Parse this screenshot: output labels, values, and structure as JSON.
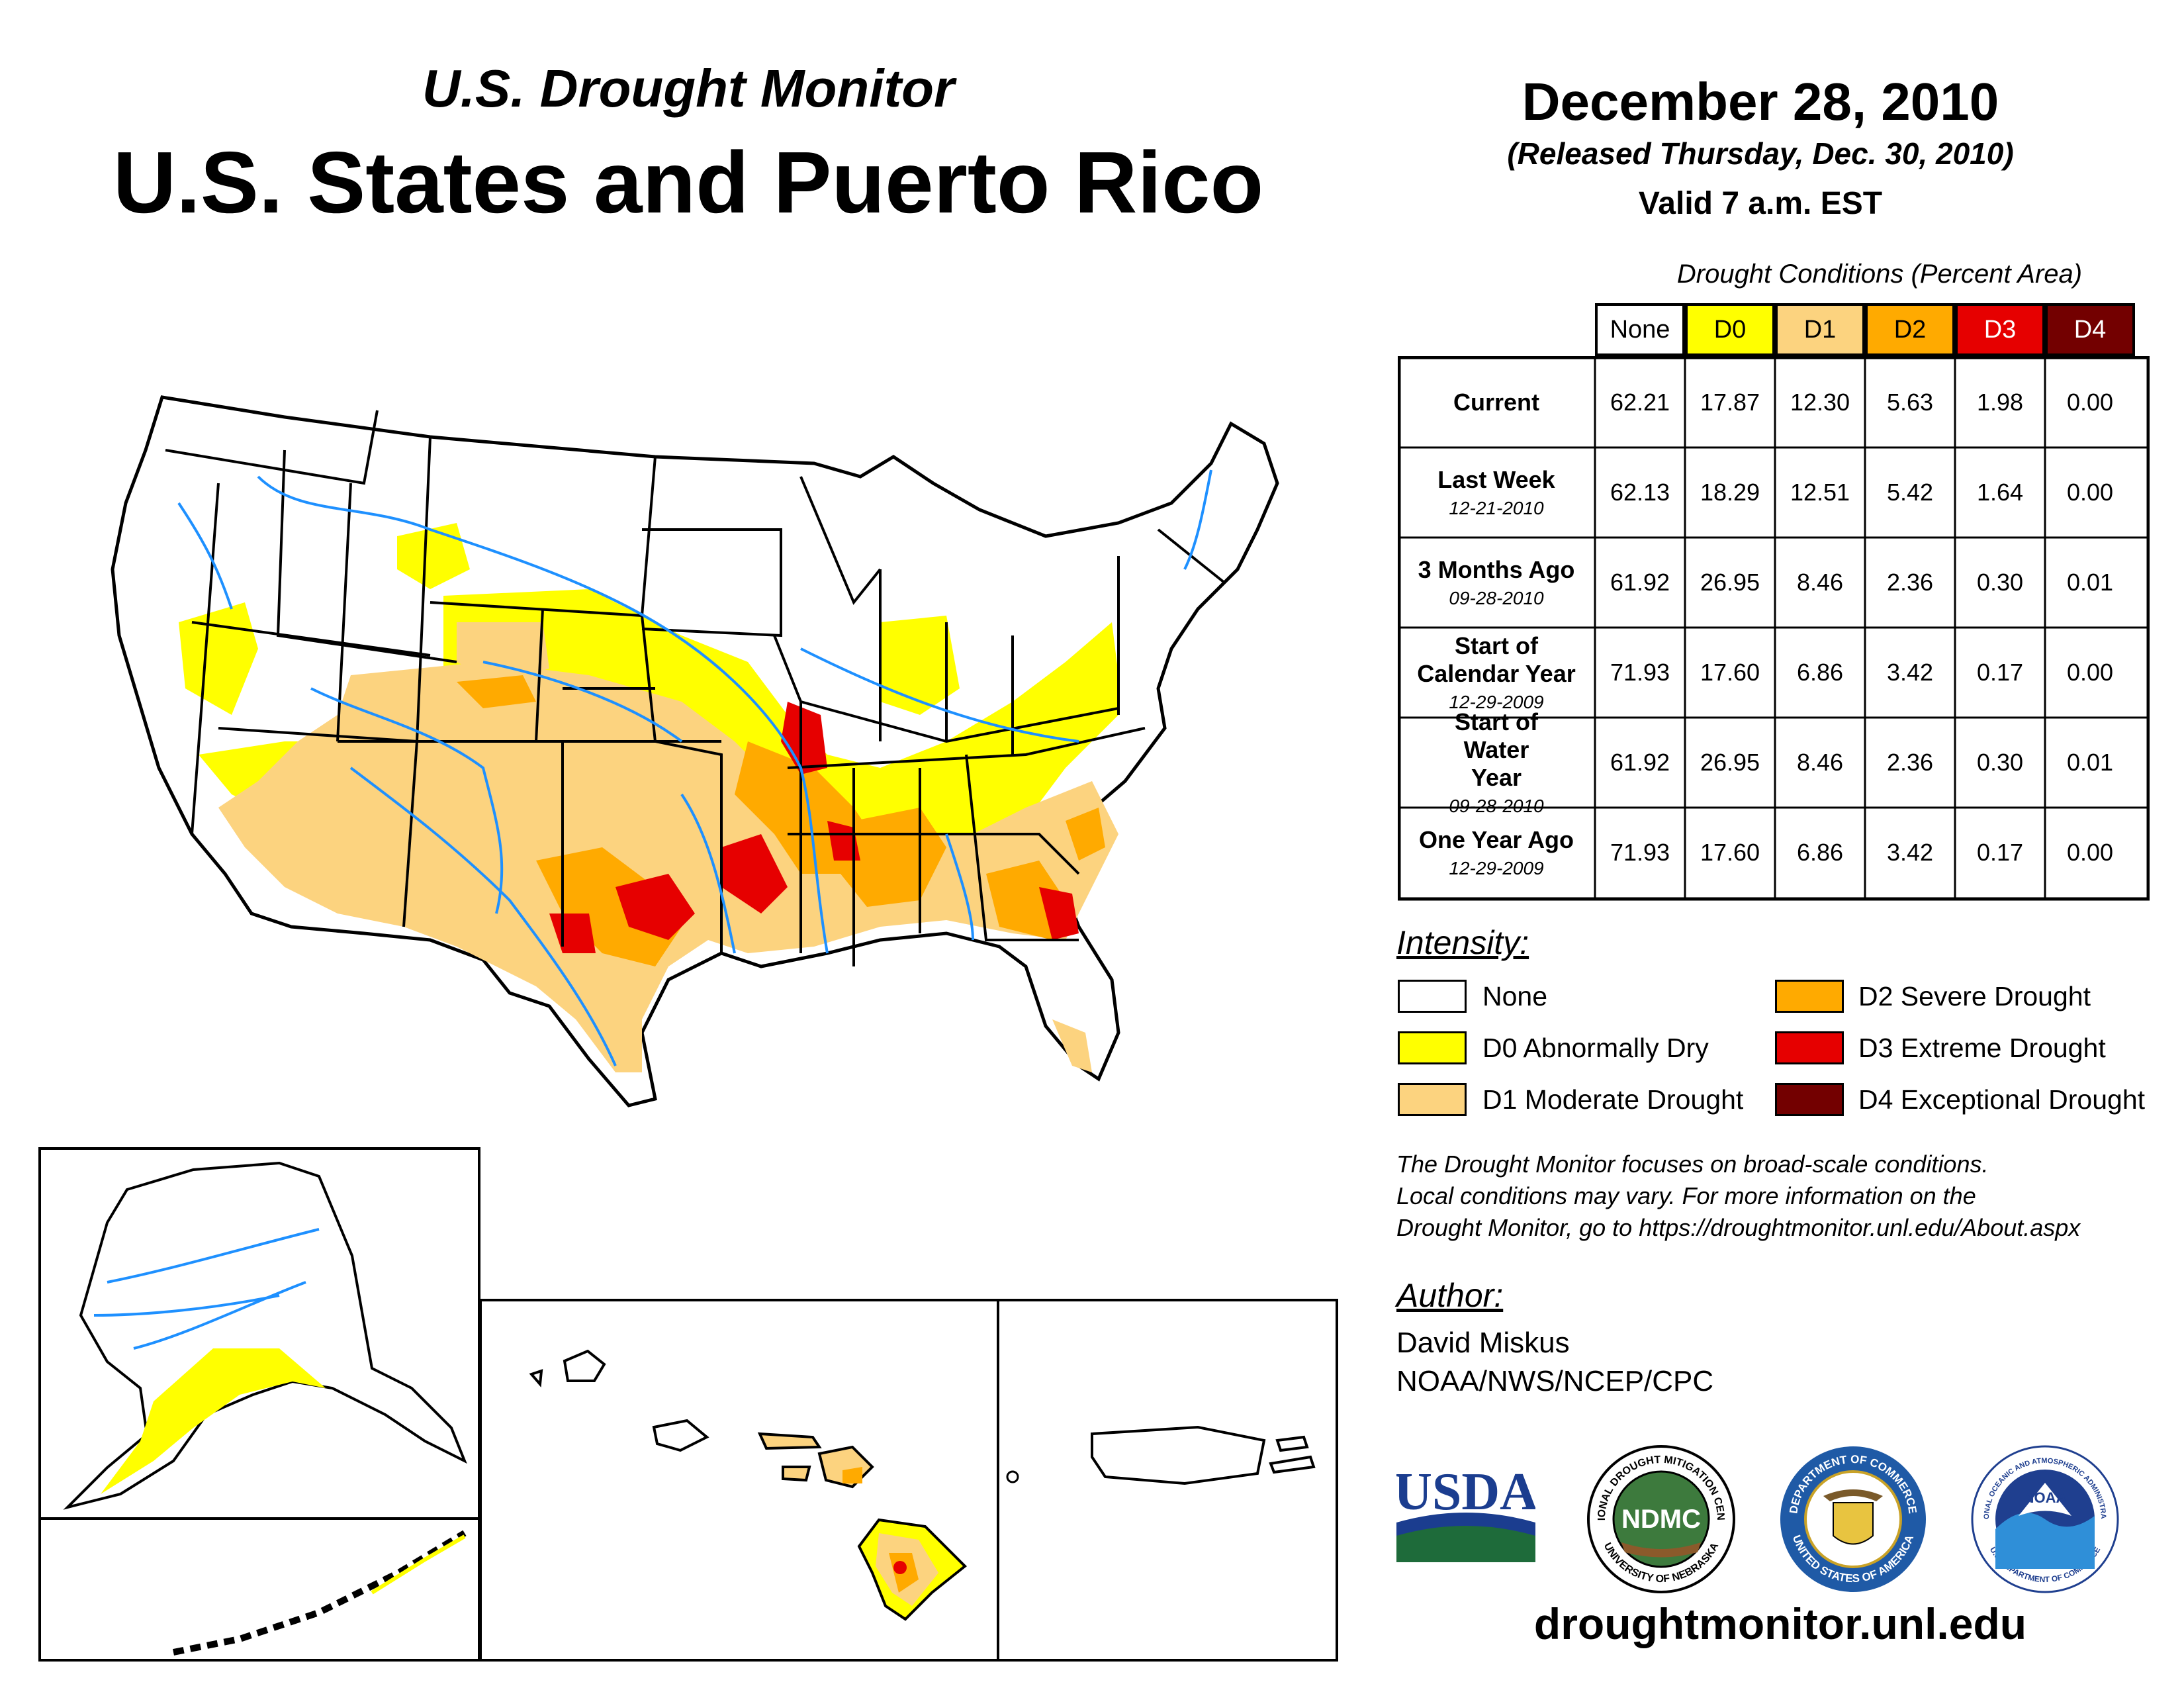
{
  "header": {
    "subtitle": "U.S. Drought Monitor",
    "title": "U.S. States and Puerto Rico",
    "date": "December 28, 2010",
    "released": "(Released Thursday, Dec. 30, 2010)",
    "valid": "Valid 7 a.m. EST"
  },
  "table": {
    "caption": "Drought Conditions (Percent Area)",
    "columns": [
      {
        "label": "None",
        "color": "#ffffff",
        "text_color": "#000000"
      },
      {
        "label": "D0",
        "color": "#ffff00",
        "text_color": "#000000"
      },
      {
        "label": "D1",
        "color": "#fcd37f",
        "text_color": "#000000"
      },
      {
        "label": "D2",
        "color": "#ffaa00",
        "text_color": "#000000"
      },
      {
        "label": "D3",
        "color": "#e60000",
        "text_color": "#ffffff"
      },
      {
        "label": "D4",
        "color": "#730000",
        "text_color": "#ffffff"
      }
    ],
    "rows": [
      {
        "label": "Current",
        "date": "",
        "values": [
          "62.21",
          "17.87",
          "12.30",
          "5.63",
          "1.98",
          "0.00"
        ]
      },
      {
        "label": "Last Week",
        "date": "12-21-2010",
        "values": [
          "62.13",
          "18.29",
          "12.51",
          "5.42",
          "1.64",
          "0.00"
        ]
      },
      {
        "label": "3 Months Ago",
        "date": "09-28-2010",
        "values": [
          "61.92",
          "26.95",
          "8.46",
          "2.36",
          "0.30",
          "0.01"
        ]
      },
      {
        "label": "Start of Calendar Year",
        "date": "12-29-2009",
        "values": [
          "71.93",
          "17.60",
          "6.86",
          "3.42",
          "0.17",
          "0.00"
        ]
      },
      {
        "label": "Start of Water Year",
        "date": "09-28-2010",
        "values": [
          "61.92",
          "26.95",
          "8.46",
          "2.36",
          "0.30",
          "0.01"
        ]
      },
      {
        "label": "One Year Ago",
        "date": "12-29-2009",
        "values": [
          "71.93",
          "17.60",
          "6.86",
          "3.42",
          "0.17",
          "0.00"
        ]
      }
    ]
  },
  "legend": {
    "heading": "Intensity:",
    "items": [
      {
        "label": "None",
        "color": "#ffffff"
      },
      {
        "label": "D0 Abnormally Dry",
        "color": "#ffff00"
      },
      {
        "label": "D1 Moderate Drought",
        "color": "#fcd37f"
      },
      {
        "label": "D2 Severe Drought",
        "color": "#ffaa00"
      },
      {
        "label": "D3 Extreme Drought",
        "color": "#e60000"
      },
      {
        "label": "D4 Exceptional Drought",
        "color": "#730000"
      }
    ]
  },
  "note": {
    "line1": "The Drought Monitor focuses on broad-scale conditions.",
    "line2": "Local conditions may vary. For more information on the",
    "line3": "Drought Monitor, go to https://droughtmonitor.unl.edu/About.aspx"
  },
  "author": {
    "heading": "Author:",
    "name": "David Miskus",
    "org": "NOAA/NWS/NCEP/CPC"
  },
  "logos": {
    "usda": "USDA",
    "ndmc": "NDMC",
    "ndmc_ring_top": "NATIONAL DROUGHT MITIGATION CENTER",
    "ndmc_ring_bottom": "UNIVERSITY OF NEBRASKA",
    "commerce_ring_top": "DEPARTMENT OF COMMERCE",
    "commerce_ring_bottom": "UNITED STATES OF AMERICA",
    "noaa": "NOAA",
    "noaa_ring_top": "NATIONAL OCEANIC AND ATMOSPHERIC ADMINISTRATION",
    "noaa_ring_bottom": "U.S. DEPARTMENT OF COMMERCE"
  },
  "footer": {
    "url": "droughtmonitor.unl.edu"
  },
  "colors": {
    "none": "#ffffff",
    "d0": "#ffff00",
    "d1": "#fcd37f",
    "d2": "#ffaa00",
    "d3": "#e60000",
    "d4": "#730000",
    "river": "#1e90ff",
    "border": "#000000"
  }
}
